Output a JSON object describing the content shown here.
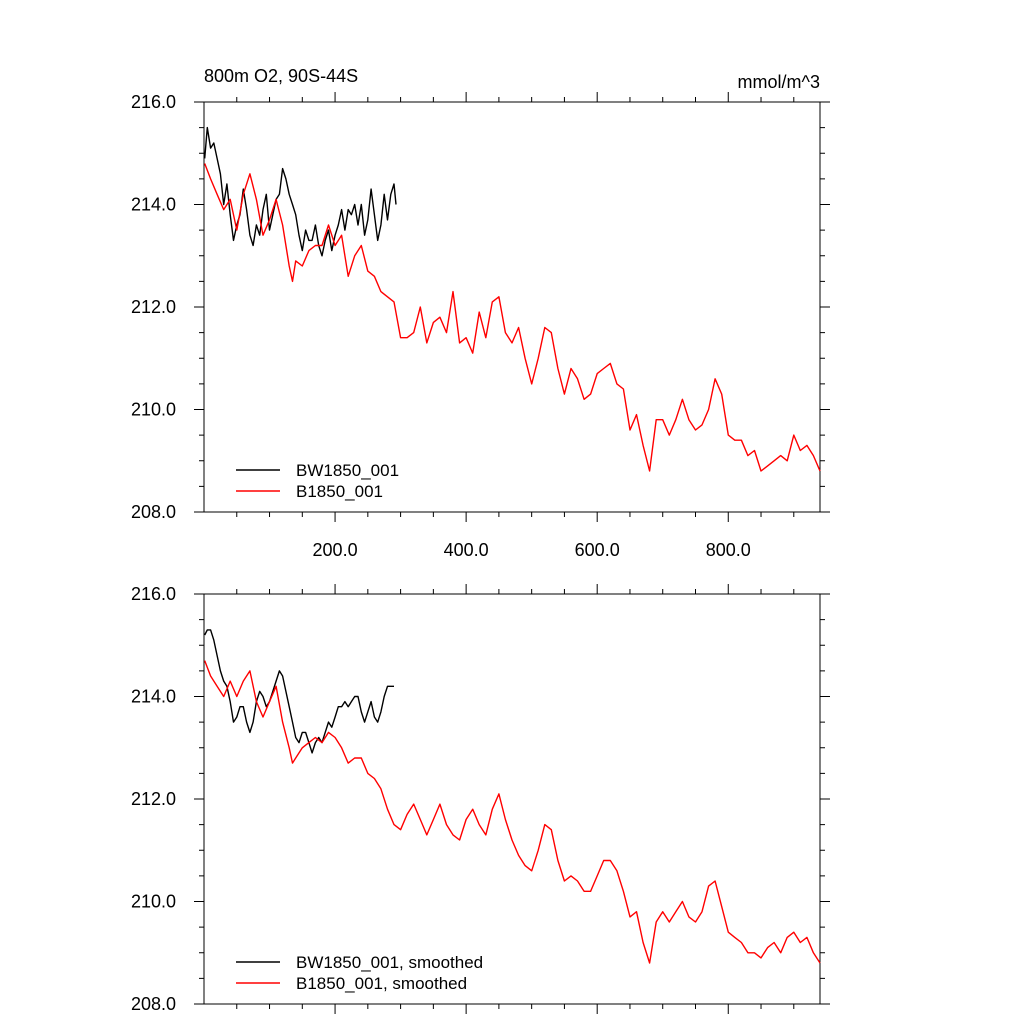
{
  "chart_data": [
    {
      "type": "line",
      "title": "800m O2, 90S-44S",
      "units": "mmol/m^3",
      "xlim": [
        0,
        940
      ],
      "ylim": [
        208,
        216
      ],
      "x_tick_labels": [
        "200.0",
        "400.0",
        "600.0",
        "800.0"
      ],
      "y_tick_labels": [
        "208.0",
        "210.0",
        "212.0",
        "214.0",
        "216.0"
      ],
      "series": [
        {
          "name": "BW1850_001",
          "color": "#000000",
          "x": [
            1,
            5,
            10,
            15,
            20,
            25,
            30,
            35,
            40,
            45,
            50,
            55,
            60,
            65,
            70,
            75,
            80,
            85,
            90,
            95,
            100,
            105,
            110,
            115,
            120,
            125,
            130,
            135,
            140,
            145,
            150,
            155,
            160,
            165,
            170,
            175,
            180,
            185,
            190,
            195,
            200,
            205,
            210,
            215,
            220,
            225,
            230,
            235,
            240,
            245,
            250,
            255,
            260,
            265,
            270,
            275,
            280,
            285,
            290,
            293
          ],
          "y": [
            214.9,
            215.5,
            215.1,
            215.2,
            214.9,
            214.6,
            214.0,
            214.4,
            213.8,
            213.3,
            213.6,
            213.8,
            214.3,
            213.9,
            213.4,
            213.2,
            213.6,
            213.4,
            213.9,
            214.2,
            213.5,
            213.8,
            214.1,
            214.2,
            214.7,
            214.5,
            214.2,
            214.0,
            213.8,
            213.4,
            213.1,
            213.5,
            213.3,
            213.3,
            213.6,
            213.2,
            213.0,
            213.3,
            213.5,
            213.1,
            213.4,
            213.6,
            213.9,
            213.5,
            213.9,
            213.8,
            214.0,
            213.6,
            214.0,
            213.4,
            213.7,
            214.3,
            213.8,
            213.3,
            213.6,
            214.2,
            213.7,
            214.2,
            214.4,
            214.0
          ]
        },
        {
          "name": "B1850_001",
          "color": "#ff0000",
          "x": [
            1,
            10,
            20,
            30,
            40,
            50,
            60,
            70,
            80,
            90,
            100,
            110,
            120,
            130,
            135,
            140,
            150,
            160,
            170,
            180,
            190,
            200,
            210,
            215,
            220,
            230,
            240,
            250,
            260,
            270,
            280,
            290,
            300,
            310,
            320,
            330,
            340,
            350,
            360,
            370,
            380,
            390,
            400,
            410,
            420,
            430,
            440,
            450,
            460,
            470,
            480,
            490,
            500,
            510,
            520,
            530,
            540,
            550,
            560,
            570,
            580,
            590,
            600,
            610,
            620,
            630,
            640,
            650,
            660,
            670,
            680,
            690,
            700,
            710,
            720,
            730,
            740,
            750,
            760,
            770,
            780,
            790,
            800,
            810,
            820,
            830,
            840,
            850,
            860,
            870,
            880,
            890,
            900,
            910,
            920,
            930,
            940
          ],
          "y": [
            214.8,
            214.5,
            214.2,
            213.9,
            214.1,
            213.5,
            214.2,
            214.6,
            214.1,
            213.4,
            213.7,
            214.1,
            213.6,
            212.8,
            212.5,
            212.9,
            212.8,
            213.1,
            213.2,
            213.2,
            213.6,
            213.2,
            213.4,
            213.0,
            212.6,
            213.0,
            213.2,
            212.7,
            212.6,
            212.3,
            212.2,
            212.1,
            211.4,
            211.4,
            211.5,
            212.0,
            211.3,
            211.7,
            211.8,
            211.5,
            212.3,
            211.3,
            211.4,
            211.1,
            211.9,
            211.4,
            212.1,
            212.2,
            211.5,
            211.3,
            211.6,
            211.0,
            210.5,
            211.0,
            211.6,
            211.5,
            210.8,
            210.3,
            210.8,
            210.6,
            210.2,
            210.3,
            210.7,
            210.8,
            210.9,
            210.5,
            210.4,
            209.6,
            209.9,
            209.3,
            208.8,
            209.8,
            209.8,
            209.5,
            209.8,
            210.2,
            209.8,
            209.6,
            209.7,
            210.0,
            210.6,
            210.3,
            209.5,
            209.4,
            209.4,
            209.1,
            209.2,
            208.8,
            208.9,
            209.0,
            209.1,
            209.0,
            209.5,
            209.2,
            209.3,
            209.1,
            208.8
          ]
        }
      ]
    },
    {
      "type": "line",
      "title": "",
      "units": "",
      "xlim": [
        0,
        940
      ],
      "ylim": [
        208,
        216
      ],
      "x_tick_labels": [],
      "y_tick_labels": [
        "208.0",
        "210.0",
        "212.0",
        "214.0",
        "216.0"
      ],
      "series": [
        {
          "name": "BW1850_001, smoothed",
          "color": "#000000",
          "x": [
            1,
            5,
            10,
            15,
            20,
            25,
            30,
            35,
            40,
            45,
            50,
            55,
            60,
            65,
            70,
            75,
            80,
            85,
            90,
            95,
            100,
            105,
            110,
            115,
            120,
            125,
            130,
            135,
            140,
            145,
            150,
            155,
            160,
            165,
            170,
            175,
            180,
            185,
            190,
            195,
            200,
            205,
            210,
            215,
            220,
            225,
            230,
            235,
            240,
            245,
            250,
            255,
            260,
            265,
            270,
            275,
            280,
            285,
            290
          ],
          "y": [
            215.2,
            215.3,
            215.3,
            215.1,
            214.8,
            214.5,
            214.3,
            214.2,
            213.9,
            213.5,
            213.6,
            213.8,
            213.8,
            213.5,
            213.3,
            213.5,
            213.9,
            214.1,
            214.0,
            213.8,
            213.9,
            214.1,
            214.3,
            214.5,
            214.4,
            214.1,
            213.8,
            213.5,
            213.2,
            213.1,
            213.3,
            213.3,
            213.1,
            212.9,
            213.1,
            213.2,
            213.1,
            213.3,
            213.5,
            213.4,
            213.6,
            213.8,
            213.8,
            213.9,
            213.8,
            213.9,
            214.0,
            214.0,
            213.7,
            213.5,
            213.7,
            213.9,
            213.6,
            213.5,
            213.7,
            214.0,
            214.2,
            214.2,
            214.2
          ]
        },
        {
          "name": "B1850_001, smoothed",
          "color": "#ff0000",
          "x": [
            1,
            10,
            20,
            30,
            40,
            50,
            60,
            70,
            80,
            90,
            100,
            110,
            120,
            130,
            135,
            140,
            150,
            160,
            170,
            180,
            190,
            200,
            210,
            220,
            230,
            240,
            250,
            260,
            270,
            280,
            290,
            300,
            310,
            320,
            330,
            340,
            350,
            360,
            370,
            380,
            390,
            400,
            410,
            420,
            430,
            440,
            450,
            460,
            470,
            480,
            490,
            500,
            510,
            520,
            530,
            540,
            550,
            560,
            570,
            580,
            590,
            600,
            610,
            620,
            630,
            640,
            650,
            660,
            670,
            680,
            690,
            700,
            710,
            720,
            730,
            740,
            750,
            760,
            770,
            780,
            790,
            800,
            810,
            820,
            830,
            840,
            850,
            860,
            870,
            880,
            890,
            900,
            910,
            920,
            930,
            940
          ],
          "y": [
            214.7,
            214.4,
            214.2,
            214.0,
            214.3,
            214.0,
            214.3,
            214.5,
            213.9,
            213.6,
            213.9,
            214.2,
            213.5,
            213.0,
            212.7,
            212.8,
            213.0,
            213.1,
            213.2,
            213.1,
            213.3,
            213.2,
            213.0,
            212.7,
            212.8,
            212.8,
            212.5,
            212.4,
            212.2,
            211.8,
            211.5,
            211.4,
            211.7,
            211.9,
            211.6,
            211.3,
            211.6,
            211.9,
            211.5,
            211.3,
            211.2,
            211.6,
            211.8,
            211.5,
            211.3,
            211.8,
            212.1,
            211.6,
            211.2,
            210.9,
            210.7,
            210.6,
            211.0,
            211.5,
            211.4,
            210.8,
            210.4,
            210.5,
            210.4,
            210.2,
            210.2,
            210.5,
            210.8,
            210.8,
            210.6,
            210.2,
            209.7,
            209.8,
            209.2,
            208.8,
            209.6,
            209.8,
            209.6,
            209.8,
            210.0,
            209.7,
            209.6,
            209.8,
            210.3,
            210.4,
            209.9,
            209.4,
            209.3,
            209.2,
            209.0,
            209.0,
            208.9,
            209.1,
            209.2,
            209.0,
            209.3,
            209.4,
            209.2,
            209.3,
            209.0,
            208.8
          ]
        }
      ]
    }
  ]
}
